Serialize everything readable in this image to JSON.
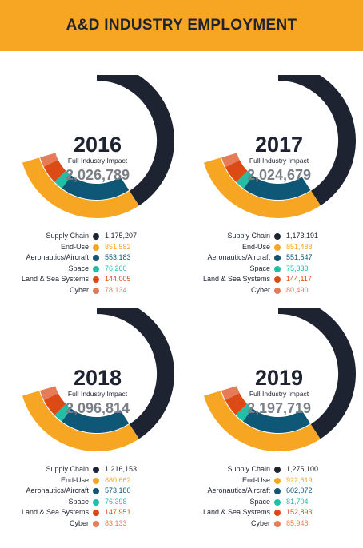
{
  "header": {
    "title": "A&D INDUSTRY EMPLOYMENT",
    "background": "#f6a623"
  },
  "center_label": "Full Industry Impact",
  "colors": {
    "Supply Chain": "#1e2331",
    "End-Use": "#f6a623",
    "Aeronautics/Aircraft": "#0f5776",
    "Space": "#22bfa6",
    "Land & Sea Systems": "#dc4a16",
    "Cyber": "#e57c57"
  },
  "chart_data": [
    {
      "type": "pie",
      "title": "2016",
      "subtitle": "Full Industry Impact",
      "total": "2,026,789",
      "categories": [
        "Supply Chain",
        "End-Use",
        "Aeronautics/Aircraft",
        "Space",
        "Land & Sea Systems",
        "Cyber"
      ],
      "values": [
        1175207,
        851582,
        553183,
        76260,
        144005,
        78134
      ],
      "value_labels": [
        "1,175,207",
        "851,582",
        "553,183",
        "76,260",
        "144,005",
        "78,134"
      ]
    },
    {
      "type": "pie",
      "title": "2017",
      "subtitle": "Full Industry Impact",
      "total": "2,024,679",
      "categories": [
        "Supply Chain",
        "End-Use",
        "Aeronautics/Aircraft",
        "Space",
        "Land & Sea Systems",
        "Cyber"
      ],
      "values": [
        1173191,
        851488,
        551547,
        75333,
        144117,
        80490
      ],
      "value_labels": [
        "1,173,191",
        "851,488",
        "551,547",
        "75,333",
        "144,117",
        "80,490"
      ]
    },
    {
      "type": "pie",
      "title": "2018",
      "subtitle": "Full Industry Impact",
      "total": "2,096,814",
      "categories": [
        "Supply Chain",
        "End-Use",
        "Aeronautics/Aircraft",
        "Space",
        "Land & Sea Systems",
        "Cyber"
      ],
      "values": [
        1216153,
        880662,
        573180,
        76398,
        147951,
        83133
      ],
      "value_labels": [
        "1,216,153",
        "880,662",
        "573,180",
        "76,398",
        "147,951",
        "83,133"
      ]
    },
    {
      "type": "pie",
      "title": "2019",
      "subtitle": "Full Industry Impact",
      "total": "2,197,719",
      "categories": [
        "Supply Chain",
        "End-Use",
        "Aeronautics/Aircraft",
        "Space",
        "Land & Sea Systems",
        "Cyber"
      ],
      "values": [
        1275100,
        922619,
        602072,
        81704,
        152893,
        85948
      ],
      "value_labels": [
        "1,275,100",
        "922,619",
        "602,072",
        "81,704",
        "152,893",
        "85,948"
      ]
    }
  ]
}
